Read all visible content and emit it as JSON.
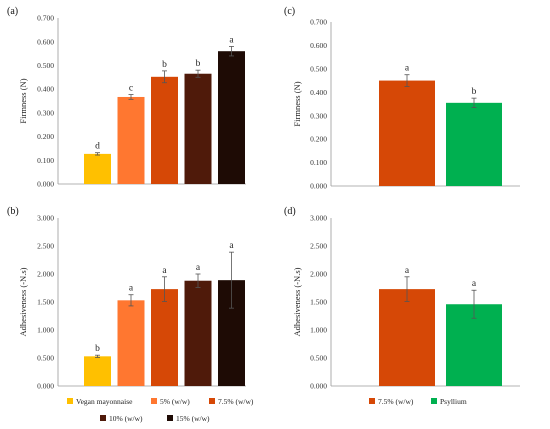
{
  "chart_data": [
    {
      "panel": "(a)",
      "type": "bar",
      "ylabel": "Firmness (N)",
      "ylim": [
        0,
        0.7
      ],
      "yticks": [
        "0.000",
        "0.100",
        "0.200",
        "0.300",
        "0.400",
        "0.500",
        "0.600",
        "0.700"
      ],
      "categories": [
        "Vegan mayonnaise",
        "5% (w/w)",
        "7.5% (w/w)",
        "10% (w/w)",
        "15% (w/w)"
      ],
      "values": [
        0.127,
        0.367,
        0.452,
        0.465,
        0.56
      ],
      "errors": [
        0.005,
        0.01,
        0.025,
        0.015,
        0.02
      ],
      "letters": [
        "d",
        "c",
        "b",
        "b",
        "a"
      ],
      "colors": [
        "#FFC000",
        "#FF7730",
        "#D64806",
        "#4F1A0A",
        "#1E0B05"
      ]
    },
    {
      "panel": "(b)",
      "type": "bar",
      "ylabel": "Adhesiveness (-N.s)",
      "ylim": [
        0,
        3
      ],
      "yticks": [
        "0.000",
        "0.500",
        "1.000",
        "1.500",
        "2.000",
        "2.500",
        "3.000"
      ],
      "categories": [
        "Vegan mayonnaise",
        "5% (w/w)",
        "7.5% (w/w)",
        "10% (w/w)",
        "15% (w/w)"
      ],
      "values": [
        0.53,
        1.53,
        1.73,
        1.88,
        1.89
      ],
      "errors": [
        0.02,
        0.1,
        0.22,
        0.12,
        0.5
      ],
      "letters": [
        "b",
        "a",
        "a",
        "a",
        "a"
      ],
      "colors": [
        "#FFC000",
        "#FF7730",
        "#D64806",
        "#4F1A0A",
        "#1E0B05"
      ],
      "legend": [
        "Vegan mayonnaise",
        "5% (w/w)",
        "7.5% (w/w)",
        "10% (w/w)",
        "15% (w/w)"
      ],
      "legend_placement": "bottom"
    },
    {
      "panel": "(c)",
      "type": "bar",
      "ylabel": "Firmness (N)",
      "ylim": [
        0,
        0.7
      ],
      "yticks": [
        "0.000",
        "0.100",
        "0.200",
        "0.300",
        "0.400",
        "0.500",
        "0.600",
        "0.700"
      ],
      "categories": [
        "7.5% (w/w)",
        "Psyllium"
      ],
      "values": [
        0.45,
        0.355
      ],
      "errors": [
        0.025,
        0.02
      ],
      "letters": [
        "a",
        "b"
      ],
      "colors": [
        "#D64806",
        "#00B050"
      ]
    },
    {
      "panel": "(d)",
      "type": "bar",
      "ylabel": "Adhesiveness (-N.s)",
      "ylim": [
        0,
        3
      ],
      "yticks": [
        "0.000",
        "0.500",
        "1.000",
        "1.500",
        "2.000",
        "2.500",
        "3.000"
      ],
      "categories": [
        "7.5% (w/w)",
        "Psyllium"
      ],
      "values": [
        1.73,
        1.46
      ],
      "errors": [
        0.22,
        0.25
      ],
      "letters": [
        "a",
        "a"
      ],
      "colors": [
        "#D64806",
        "#00B050"
      ],
      "legend": [
        "7.5% (w/w)",
        "Psyllium"
      ],
      "legend_placement": "bottom"
    }
  ]
}
